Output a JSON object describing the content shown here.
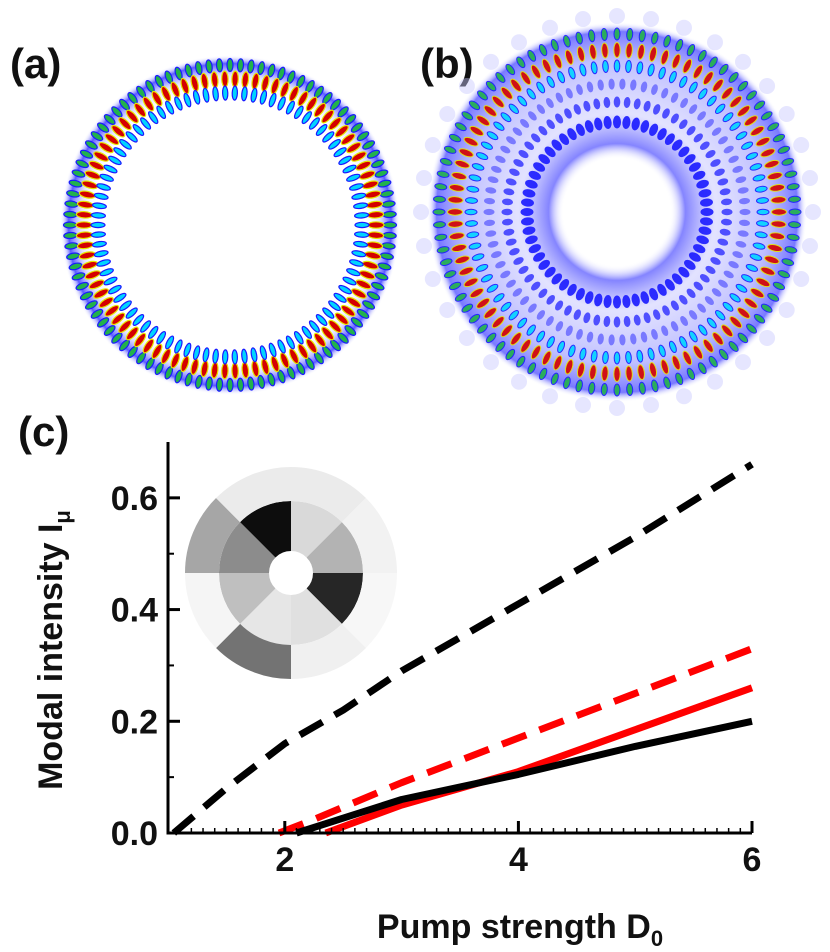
{
  "panels": {
    "a": "(a)",
    "b": "(b)",
    "c": "(c)"
  },
  "colors": {
    "ring_red": "#d40000",
    "ring_yellow": "#e6e600",
    "ring_green": "#22b14c",
    "ring_cyan": "#00d4ff",
    "ring_blue": "#1a1aff",
    "series_black": "#000000",
    "series_red": "#ff0000"
  },
  "chart_data": {
    "type": "line",
    "xlabel": "Pump strength D₀",
    "xlabel_main": "Pump strength D",
    "xlabel_sub": "0",
    "ylabel": "Modal intensity Iμ",
    "ylabel_main": "Modal intensity I",
    "ylabel_sub": "μ",
    "xlim": [
      1.0,
      6.0
    ],
    "ylim": [
      0.0,
      0.7
    ],
    "xticks": [
      2,
      4,
      6
    ],
    "xtick_labels": [
      "2",
      "4",
      "6"
    ],
    "yticks": [
      0.0,
      0.2,
      0.4,
      0.6
    ],
    "ytick_labels": [
      "0.0",
      "0.2",
      "0.4",
      "0.6"
    ],
    "series": [
      {
        "style": "dashed",
        "color": "#000000",
        "x": [
          1.05,
          1.5,
          2.0,
          2.5,
          3.0,
          4.0,
          5.0,
          6.0
        ],
        "y": [
          0.0,
          0.08,
          0.16,
          0.22,
          0.29,
          0.41,
          0.53,
          0.66
        ]
      },
      {
        "style": "dashed",
        "color": "#ff0000",
        "x": [
          1.95,
          2.2,
          3.0,
          4.0,
          5.0,
          6.0
        ],
        "y": [
          0.0,
          0.02,
          0.09,
          0.17,
          0.25,
          0.33
        ]
      },
      {
        "style": "solid",
        "color": "#ff0000",
        "x": [
          2.35,
          3.0,
          4.0,
          5.0,
          6.0
        ],
        "y": [
          0.0,
          0.05,
          0.11,
          0.185,
          0.26
        ]
      },
      {
        "style": "solid",
        "color": "#000000",
        "x": [
          2.1,
          3.0,
          4.0,
          5.0,
          6.0
        ],
        "y": [
          0.0,
          0.06,
          0.105,
          0.155,
          0.2
        ]
      }
    ],
    "inset": {
      "type": "pie",
      "rings": [
        {
          "name": "inner",
          "sectors": [
            0.15,
            0.3,
            0.85,
            0.12,
            0.1,
            0.25,
            0.45,
            0.95
          ]
        },
        {
          "name": "outer",
          "sectors": [
            0.08,
            0.05,
            0.03,
            0.06,
            0.55,
            0.04,
            0.35,
            0.08
          ]
        }
      ]
    }
  }
}
